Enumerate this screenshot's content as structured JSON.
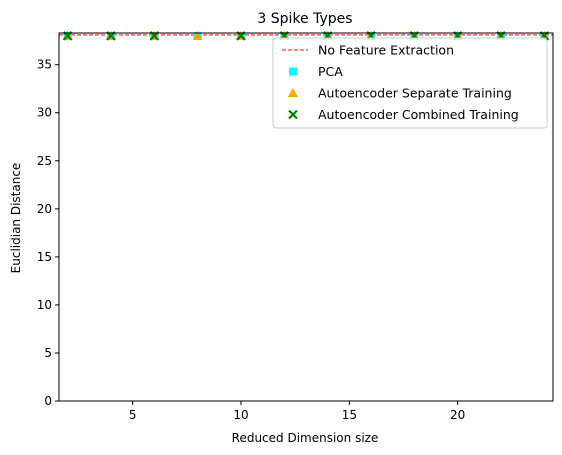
{
  "chart_data": {
    "type": "scatter",
    "title": "3 Spike Types",
    "xlabel": "Reduced Dimension size",
    "ylabel": "Euclidian Distance",
    "xlim": [
      1.6,
      24.4
    ],
    "ylim": [
      0,
      38.3
    ],
    "xticks": [
      5,
      10,
      15,
      20
    ],
    "yticks": [
      0,
      5,
      10,
      15,
      20,
      25,
      30,
      35
    ],
    "grid": false,
    "legend_position": "top-right",
    "reference_line": {
      "name": "No Feature Extraction",
      "y": 38.1,
      "color": "#ff0000",
      "style": "dashed"
    },
    "series": [
      {
        "name": "PCA",
        "marker": "square",
        "color": "#00ffff",
        "x": [
          2,
          4,
          6,
          8,
          10,
          12,
          14,
          16,
          18,
          20,
          22,
          24
        ],
        "y": [
          38.0,
          38.0,
          38.0,
          38.0,
          38.0,
          38.0,
          38.0,
          38.0,
          38.0,
          38.0,
          38.0,
          38.0
        ]
      },
      {
        "name": "Autoencoder Separate Training",
        "marker": "triangle",
        "color": "#ffa500",
        "x": [
          2,
          4,
          6,
          8,
          10,
          12,
          14,
          16,
          18,
          20,
          22,
          24
        ],
        "y": [
          38.0,
          38.0,
          38.0,
          38.0,
          38.0,
          38.0,
          38.0,
          38.0,
          38.0,
          38.0,
          38.0,
          38.0
        ]
      },
      {
        "name": "Autoencoder Combined Training",
        "marker": "x",
        "color": "#008000",
        "x": [
          2,
          4,
          6,
          10,
          12,
          14,
          16,
          18,
          20,
          22,
          24
        ],
        "y": [
          38.0,
          38.0,
          38.0,
          38.0,
          38.0,
          38.0,
          38.0,
          38.0,
          38.0,
          38.0,
          38.0
        ]
      }
    ]
  }
}
